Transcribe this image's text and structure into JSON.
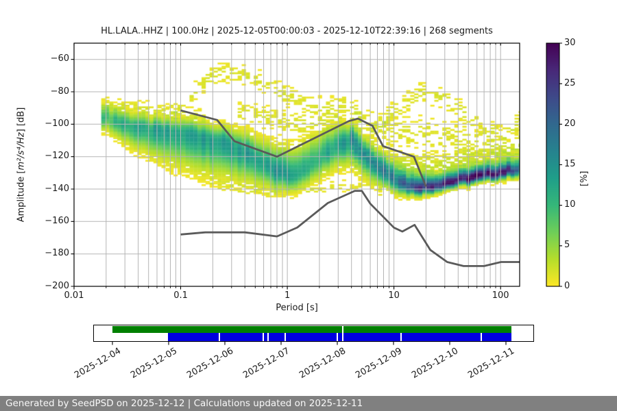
{
  "title": "HL.LALA..HHZ | 100.0Hz | 2025-12-05T00:00:03 - 2025-12-10T22:39:16 | 268 segments",
  "axes": {
    "xlabel": "Period [s]",
    "ylabel": {
      "prefix": "Amplitude [",
      "math": "m²/s⁴/Hz",
      "suffix": "] [dB]"
    },
    "x_tick_labels": [
      "0.01",
      "0.1",
      "1",
      "10",
      "100"
    ],
    "x_ticks": [
      0.01,
      0.1,
      1,
      10,
      100
    ],
    "y_tick_labels": [
      "−60",
      "−80",
      "−100",
      "−120",
      "−140",
      "−160",
      "−180",
      "−200"
    ],
    "y_ticks": [
      -60,
      -80,
      -100,
      -120,
      -140,
      -160,
      -180,
      -200
    ]
  },
  "colorbar": {
    "label": "[%]",
    "min": 0,
    "max": 30,
    "ticks": [
      0,
      5,
      10,
      15,
      20,
      25,
      30
    ],
    "colormap": "viridis_r",
    "colors": [
      "#440154",
      "#482878",
      "#3e4989",
      "#31688e",
      "#26828e",
      "#1f9e89",
      "#35b779",
      "#6ece58",
      "#b5de2b",
      "#fde725"
    ]
  },
  "chart_data": [
    {
      "type": "heatmap",
      "name": "ppsd-probability-histogram",
      "title": "HL.LALA..HHZ | 100.0Hz | 2025-12-05T00:00:03 - 2025-12-10T22:39:16 | 268 segments",
      "xlabel": "Period [s]",
      "ylabel": "Amplitude [m²/s⁴/Hz] [dB]",
      "xscale": "log",
      "xlim": [
        0.01,
        151
      ],
      "ylim": [
        -200,
        -50
      ],
      "grid": true,
      "colorbar_range_pct": [
        0,
        30
      ],
      "psd_mode_ridge": [
        [
          0.018,
          -95
        ],
        [
          0.03,
          -100
        ],
        [
          0.05,
          -103.5
        ],
        [
          0.08,
          -105
        ],
        [
          0.13,
          -106.5
        ],
        [
          0.22,
          -110
        ],
        [
          0.35,
          -115
        ],
        [
          0.55,
          -123
        ],
        [
          0.8,
          -129
        ],
        [
          1.1,
          -132
        ],
        [
          1.8,
          -124
        ],
        [
          3.0,
          -112
        ],
        [
          4.2,
          -109
        ],
        [
          6.0,
          -122
        ],
        [
          8.0,
          -129
        ],
        [
          11,
          -135
        ],
        [
          14,
          -138.5
        ],
        [
          20,
          -139
        ],
        [
          30,
          -136.5
        ],
        [
          50,
          -133.5
        ],
        [
          80,
          -131
        ],
        [
          120,
          -129
        ],
        [
          151,
          -127.5
        ]
      ],
      "noise_models": {
        "color": "#5a5a5a",
        "nhnm": [
          [
            0.1,
            -91.5
          ],
          [
            0.22,
            -97.4
          ],
          [
            0.32,
            -110.5
          ],
          [
            0.8,
            -120.0
          ],
          [
            3.8,
            -98.0
          ],
          [
            4.6,
            -96.5
          ],
          [
            6.3,
            -101.0
          ],
          [
            7.9,
            -113.5
          ],
          [
            15.4,
            -120.0
          ],
          [
            20.0,
            -138.5
          ]
        ],
        "nlnm": [
          [
            0.1,
            -168.0
          ],
          [
            0.17,
            -166.7
          ],
          [
            0.4,
            -166.7
          ],
          [
            0.8,
            -169.2
          ],
          [
            1.24,
            -163.7
          ],
          [
            2.4,
            -148.6
          ],
          [
            4.3,
            -141.1
          ],
          [
            5.0,
            -141.1
          ],
          [
            6.0,
            -149.0
          ],
          [
            10.0,
            -163.8
          ],
          [
            12.0,
            -166.2
          ],
          [
            15.6,
            -162.1
          ],
          [
            21.9,
            -177.5
          ],
          [
            31.6,
            -185.0
          ],
          [
            45.0,
            -187.5
          ],
          [
            70.0,
            -187.5
          ],
          [
            101.0,
            -185.0
          ],
          [
            151.0,
            -185.0
          ]
        ]
      },
      "render": {
        "pmin": 0.018,
        "bins_per_octave": 8,
        "db_bin": 1,
        "band_controls": [
          [
            0.018,
            -95,
            4.5,
            4,
            9
          ],
          [
            0.03,
            -100,
            4.5,
            6,
            11
          ],
          [
            0.05,
            -103.5,
            4.5,
            8,
            13
          ],
          [
            0.08,
            -105,
            4.5,
            10,
            13
          ],
          [
            0.13,
            -106.5,
            5,
            11,
            13
          ],
          [
            0.22,
            -110,
            5,
            11,
            14
          ],
          [
            0.35,
            -115,
            6,
            10,
            13
          ],
          [
            0.55,
            -123,
            7,
            8,
            14
          ],
          [
            0.8,
            -129,
            8,
            6,
            15
          ],
          [
            1.1,
            -132,
            9,
            5,
            14
          ],
          [
            1.8,
            -124,
            9,
            6,
            11
          ],
          [
            3.0,
            -112,
            6.5,
            7,
            13
          ],
          [
            4.2,
            -109,
            5,
            8,
            15
          ],
          [
            6.0,
            -122,
            5.5,
            7,
            13
          ],
          [
            8.0,
            -129,
            5.5,
            5,
            15
          ],
          [
            11,
            -135,
            5,
            4,
            18
          ],
          [
            14,
            -138.5,
            4.5,
            3,
            23
          ],
          [
            20,
            -139,
            4,
            2.5,
            27
          ],
          [
            30,
            -136.5,
            3.5,
            2.2,
            28
          ],
          [
            50,
            -133.5,
            3.5,
            2.2,
            28
          ],
          [
            80,
            -131,
            3.5,
            2.2,
            27
          ],
          [
            120,
            -129,
            3.5,
            2.3,
            25
          ],
          [
            151,
            -127.5,
            3.5,
            2.5,
            23
          ]
        ],
        "clouds": [
          {
            "name": "storm-arc",
            "points": [
              [
                0.085,
                -94
              ],
              [
                0.13,
                -81
              ],
              [
                0.2,
                -70
              ],
              [
                0.3,
                -67
              ],
              [
                0.5,
                -72
              ],
              [
                0.8,
                -79
              ],
              [
                1.3,
                -86
              ],
              [
                2.2,
                -90
              ],
              [
                3.5,
                -88
              ],
              [
                5,
                -95
              ]
            ],
            "spread": 4.5,
            "value": 1.6,
            "density": 0.45
          },
          {
            "name": "mid-upper-scatter",
            "points": [
              [
                0.35,
                -92
              ],
              [
                0.6,
                -95
              ],
              [
                1,
                -99
              ],
              [
                1.8,
                -99
              ],
              [
                3,
                -97
              ]
            ],
            "spread": 5,
            "value": 1.5,
            "density": 0.35
          },
          {
            "name": "long-period-hump",
            "points": [
              [
                6,
                -104
              ],
              [
                11,
                -90
              ],
              [
                18,
                -80
              ],
              [
                28,
                -83
              ],
              [
                45,
                -93
              ],
              [
                75,
                -103
              ],
              [
                115,
                -107
              ],
              [
                151,
                -97
              ]
            ],
            "spread": 4.5,
            "value": 1.6,
            "density": 0.45
          },
          {
            "name": "lp-upper-scatter",
            "points": [
              [
                4,
                -100
              ],
              [
                8,
                -103
              ],
              [
                15,
                -105
              ],
              [
                30,
                -108
              ],
              [
                60,
                -112
              ],
              [
                151,
                -113
              ]
            ],
            "spread": 8,
            "value": 1.5,
            "density": 0.38
          },
          {
            "name": "lp-shelf",
            "points": [
              [
                4,
                -118
              ],
              [
                8,
                -124
              ],
              [
                14,
                -128
              ],
              [
                25,
                -127
              ],
              [
                50,
                -124
              ],
              [
                90,
                -122
              ],
              [
                151,
                -120
              ]
            ],
            "spread": 6.5,
            "value": 2.4,
            "density": 0.8
          },
          {
            "name": "below-band",
            "points": [
              [
                0.2,
                -136
              ],
              [
                0.4,
                -140
              ],
              [
                0.8,
                -142
              ],
              [
                1.5,
                -141
              ],
              [
                3,
                -138
              ],
              [
                5,
                -139
              ],
              [
                8,
                -141
              ]
            ],
            "spread": 2.5,
            "value": 1.3,
            "density": 0.4
          },
          {
            "name": "left-top-scatter",
            "points": [
              [
                0.018,
                -88
              ],
              [
                0.035,
                -90
              ],
              [
                0.07,
                -92
              ],
              [
                0.15,
                -95
              ]
            ],
            "spread": 3.5,
            "value": 1.4,
            "density": 0.5
          }
        ]
      }
    },
    {
      "type": "timeline",
      "name": "data-coverage-timeline",
      "dates": [
        "2025-12-04",
        "2025-12-05",
        "2025-12-06",
        "2025-12-07",
        "2025-12-08",
        "2025-12-09",
        "2025-12-10",
        "2025-12-11"
      ],
      "bars": [
        {
          "name": "processed-coverage",
          "color": "#008000",
          "start_day": 0.0,
          "end_day": 7.1,
          "gaps_day": [
            4.09
          ]
        },
        {
          "name": "data-coverage",
          "color": "#0000e0",
          "start_day": 0.99,
          "end_day": 7.1,
          "gaps_day": [
            1.89,
            2.67,
            2.76,
            3.06,
            3.99,
            4.09,
            5.12,
            6.55
          ]
        }
      ]
    }
  ],
  "footer": {
    "text": "Generated by SeedPSD on 2025-12-12 | Calculations updated on 2025-12-11"
  }
}
